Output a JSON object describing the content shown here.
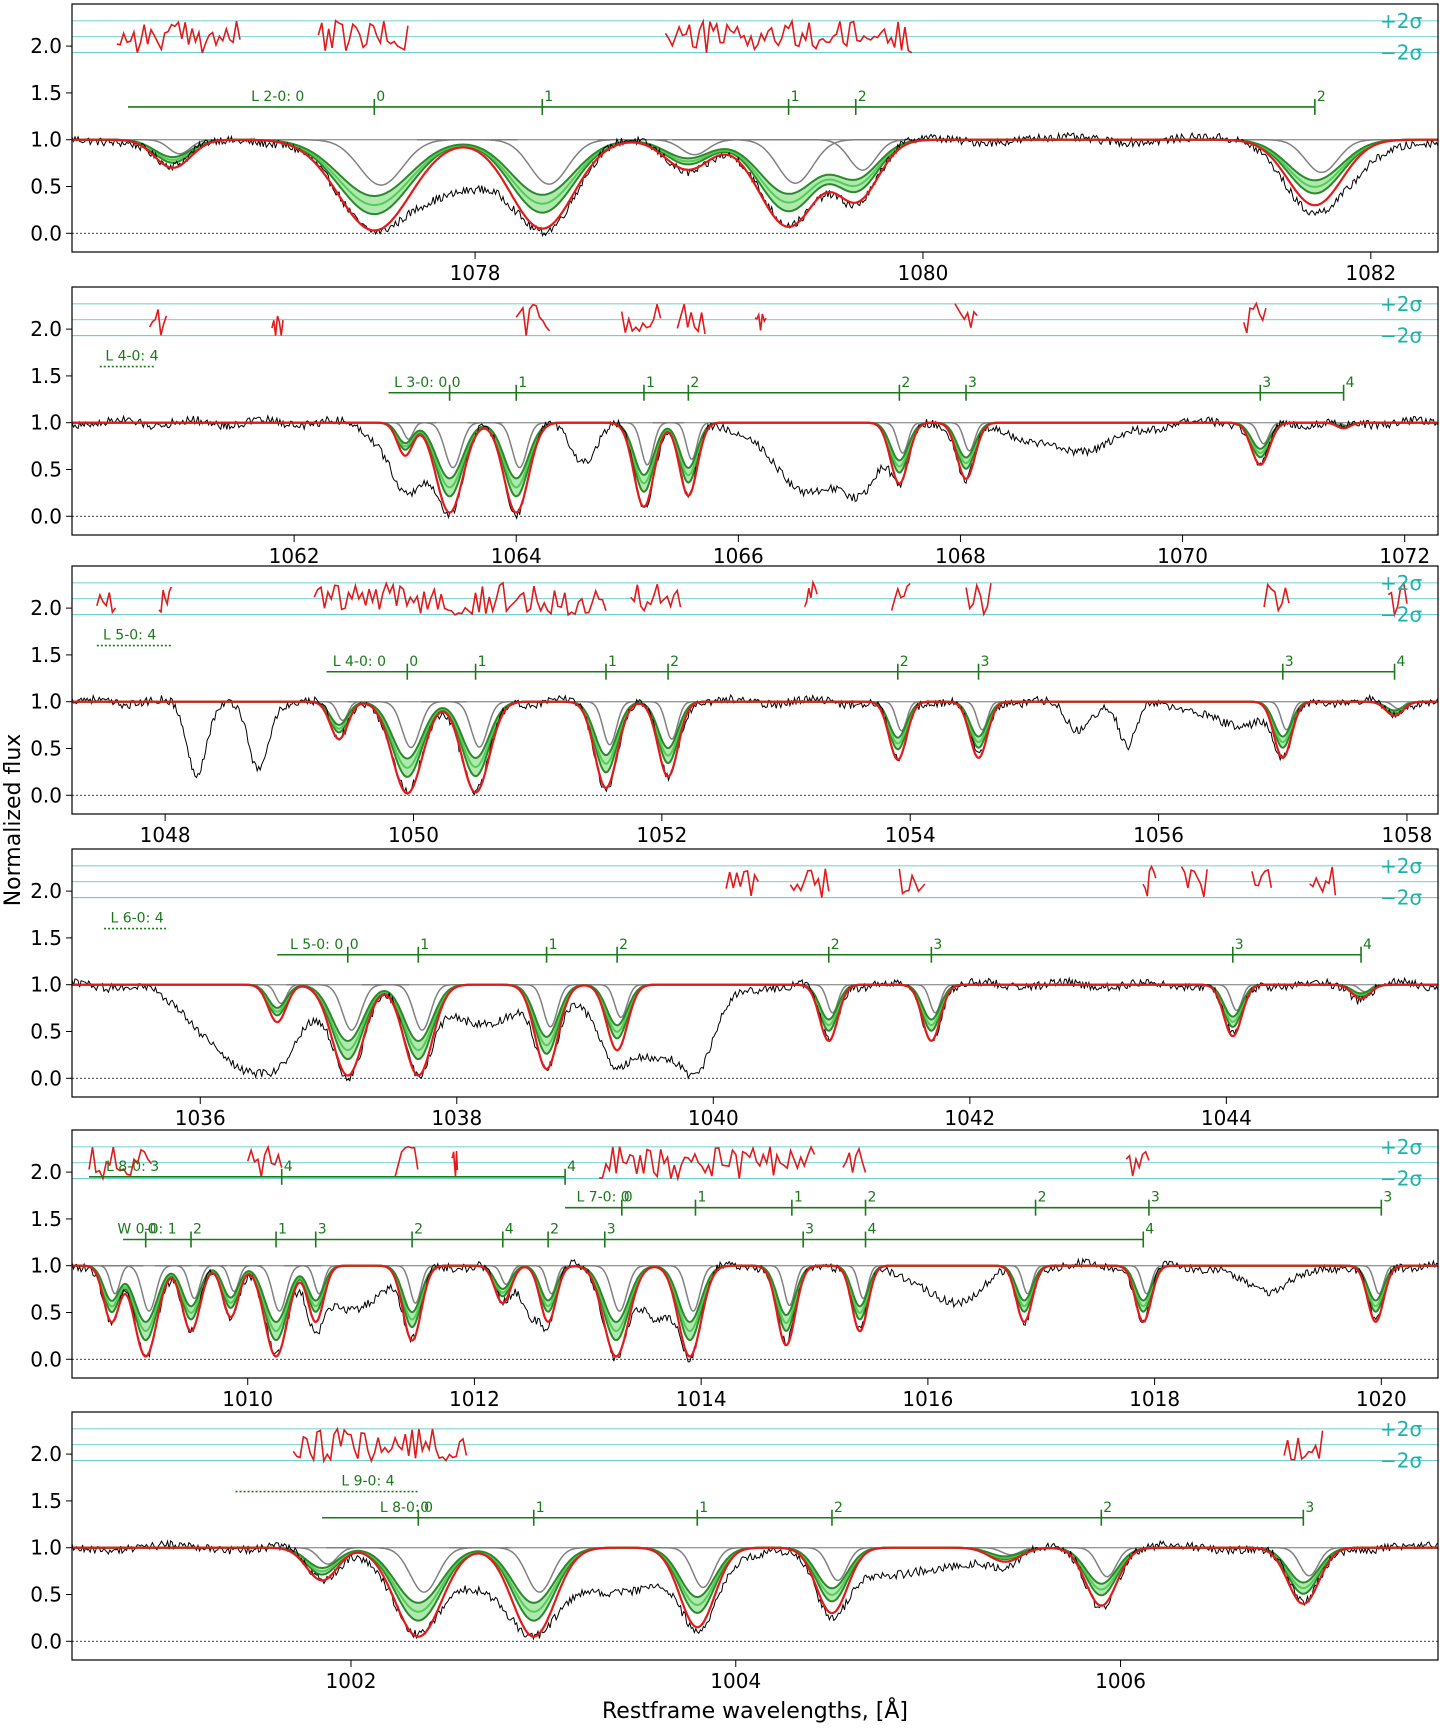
{
  "figure": {
    "xlabel": "Restframe wavelengths, [Å]",
    "ylabel": "Normalized flux",
    "sigma_labels": [
      "+2σ",
      "−2σ"
    ]
  },
  "chart_data": [
    {
      "type": "line",
      "panel": 1,
      "xlim": [
        1076.2,
        1082.3
      ],
      "ylim": [
        -0.2,
        2.45
      ],
      "xticks": [
        1078,
        1080,
        1082
      ],
      "yticks": [
        0.0,
        0.5,
        1.0,
        1.5,
        2.0
      ],
      "lines": [
        {
          "center": 1077.55,
          "depth": 0.97,
          "width": 0.16
        },
        {
          "center": 1078.3,
          "depth": 0.95,
          "width": 0.14
        },
        {
          "center": 1079.4,
          "depth": 0.93,
          "width": 0.13
        },
        {
          "center": 1079.7,
          "depth": 0.65,
          "width": 0.1
        },
        {
          "center": 1081.75,
          "depth": 0.7,
          "width": 0.12
        },
        {
          "center": 1076.65,
          "depth": 0.3,
          "width": 0.08
        },
        {
          "center": 1078.95,
          "depth": 0.32,
          "width": 0.1
        }
      ],
      "extra_data": [
        {
          "center": 1077.9,
          "depth": 0.55,
          "width": 0.25
        },
        {
          "center": 1081.85,
          "depth": 0.35,
          "width": 0.15
        }
      ],
      "resid": [
        [
          1076.4,
          1076.95
        ],
        [
          1077.3,
          1077.7
        ],
        [
          1078.85,
          1079.95
        ]
      ],
      "label_rows": [
        {
          "label": "L 2-0: 0",
          "start": 1076.45,
          "end": 1081.75,
          "label_at": 1077.0,
          "ticks": [
            {
              "x": 1077.55,
              "label": "0"
            },
            {
              "x": 1078.3,
              "label": "1"
            },
            {
              "x": 1079.4,
              "label": "1"
            },
            {
              "x": 1079.7,
              "label": "2"
            },
            {
              "x": 1081.75,
              "label": "2"
            }
          ]
        }
      ]
    },
    {
      "type": "line",
      "panel": 2,
      "xlim": [
        1060.0,
        1072.3
      ],
      "ylim": [
        -0.2,
        2.45
      ],
      "xticks": [
        1062,
        1064,
        1066,
        1068,
        1070,
        1072
      ],
      "yticks": [
        0.0,
        0.5,
        1.0,
        1.5,
        2.0
      ],
      "lines": [
        {
          "center": 1063.4,
          "depth": 0.96,
          "width": 0.12
        },
        {
          "center": 1064.0,
          "depth": 0.96,
          "width": 0.11
        },
        {
          "center": 1065.15,
          "depth": 0.9,
          "width": 0.09
        },
        {
          "center": 1065.55,
          "depth": 0.78,
          "width": 0.08
        },
        {
          "center": 1067.45,
          "depth": 0.65,
          "width": 0.08
        },
        {
          "center": 1068.05,
          "depth": 0.6,
          "width": 0.08
        },
        {
          "center": 1070.7,
          "depth": 0.45,
          "width": 0.08
        },
        {
          "center": 1063.0,
          "depth": 0.35,
          "width": 0.07
        },
        {
          "center": 1071.45,
          "depth": 0.06,
          "width": 0.06
        }
      ],
      "extra_data": [
        {
          "center": 1063.05,
          "depth": 0.7,
          "width": 0.2
        },
        {
          "center": 1066.6,
          "depth": 0.7,
          "width": 0.3
        },
        {
          "center": 1067.05,
          "depth": 0.75,
          "width": 0.2
        },
        {
          "center": 1064.6,
          "depth": 0.4,
          "width": 0.12
        },
        {
          "center": 1069.0,
          "depth": 0.3,
          "width": 0.4
        }
      ],
      "resid": [
        [
          1060.7,
          1060.85
        ],
        [
          1061.8,
          1061.9
        ],
        [
          1064.0,
          1064.3
        ],
        [
          1064.95,
          1065.3
        ],
        [
          1065.45,
          1065.7
        ],
        [
          1066.15,
          1066.25
        ],
        [
          1067.95,
          1068.15
        ],
        [
          1070.55,
          1070.75
        ]
      ],
      "label_rows": [
        {
          "label": "L 4-0: 4",
          "start": 1060.25,
          "end": 1060.75,
          "label_at": 1060.3,
          "dashed": true,
          "ticks": []
        },
        {
          "label": "L 3-0: 0",
          "start": 1062.85,
          "end": 1071.45,
          "label_at": 1062.9,
          "ticks": [
            {
              "x": 1063.4,
              "label": "0"
            },
            {
              "x": 1064.0,
              "label": "1"
            },
            {
              "x": 1065.15,
              "label": "1"
            },
            {
              "x": 1065.55,
              "label": "2"
            },
            {
              "x": 1067.45,
              "label": "2"
            },
            {
              "x": 1068.05,
              "label": "3"
            },
            {
              "x": 1070.7,
              "label": "3"
            },
            {
              "x": 1071.45,
              "label": "4"
            }
          ]
        }
      ]
    },
    {
      "type": "line",
      "panel": 3,
      "xlim": [
        1047.25,
        1058.25
      ],
      "ylim": [
        -0.2,
        2.45
      ],
      "xticks": [
        1048,
        1050,
        1052,
        1054,
        1056,
        1058
      ],
      "yticks": [
        0.0,
        0.5,
        1.0,
        1.5,
        2.0
      ],
      "lines": [
        {
          "center": 1049.95,
          "depth": 0.98,
          "width": 0.12
        },
        {
          "center": 1050.5,
          "depth": 0.97,
          "width": 0.11
        },
        {
          "center": 1051.55,
          "depth": 0.92,
          "width": 0.09
        },
        {
          "center": 1052.05,
          "depth": 0.8,
          "width": 0.08
        },
        {
          "center": 1053.9,
          "depth": 0.62,
          "width": 0.07
        },
        {
          "center": 1054.55,
          "depth": 0.6,
          "width": 0.07
        },
        {
          "center": 1057.0,
          "depth": 0.6,
          "width": 0.07
        },
        {
          "center": 1049.4,
          "depth": 0.4,
          "width": 0.07
        },
        {
          "center": 1057.9,
          "depth": 0.15,
          "width": 0.07
        }
      ],
      "extra_data": [
        {
          "center": 1048.25,
          "depth": 0.75,
          "width": 0.08
        },
        {
          "center": 1048.75,
          "depth": 0.75,
          "width": 0.08
        },
        {
          "center": 1055.35,
          "depth": 0.3,
          "width": 0.1
        },
        {
          "center": 1055.75,
          "depth": 0.5,
          "width": 0.07
        },
        {
          "center": 1056.6,
          "depth": 0.25,
          "width": 0.25
        }
      ],
      "resid": [
        [
          1047.45,
          1047.6
        ],
        [
          1047.95,
          1048.05
        ],
        [
          1049.2,
          1051.55
        ],
        [
          1051.75,
          1052.15
        ],
        [
          1053.15,
          1053.25
        ],
        [
          1053.85,
          1054.0
        ],
        [
          1054.45,
          1054.65
        ],
        [
          1056.85,
          1057.05
        ],
        [
          1057.85,
          1058.0
        ]
      ],
      "label_rows": [
        {
          "label": "L 5-0: 4",
          "start": 1047.45,
          "end": 1048.05,
          "label_at": 1047.5,
          "dashed": true,
          "ticks": []
        },
        {
          "label": "L 4-0: 0",
          "start": 1049.3,
          "end": 1057.9,
          "label_at": 1049.35,
          "ticks": [
            {
              "x": 1049.95,
              "label": "0"
            },
            {
              "x": 1050.5,
              "label": "1"
            },
            {
              "x": 1051.55,
              "label": "1"
            },
            {
              "x": 1052.05,
              "label": "2"
            },
            {
              "x": 1053.9,
              "label": "2"
            },
            {
              "x": 1054.55,
              "label": "3"
            },
            {
              "x": 1057.0,
              "label": "3"
            },
            {
              "x": 1057.9,
              "label": "4"
            }
          ]
        }
      ]
    },
    {
      "type": "line",
      "panel": 4,
      "xlim": [
        1035.0,
        1045.65
      ],
      "ylim": [
        -0.2,
        2.45
      ],
      "xticks": [
        1036,
        1038,
        1040,
        1042,
        1044
      ],
      "yticks": [
        0.0,
        0.5,
        1.0,
        1.5,
        2.0
      ],
      "lines": [
        {
          "center": 1037.15,
          "depth": 0.97,
          "width": 0.12
        },
        {
          "center": 1037.7,
          "depth": 0.97,
          "width": 0.11
        },
        {
          "center": 1038.7,
          "depth": 0.9,
          "width": 0.09
        },
        {
          "center": 1039.25,
          "depth": 0.7,
          "width": 0.08
        },
        {
          "center": 1040.9,
          "depth": 0.6,
          "width": 0.07
        },
        {
          "center": 1041.7,
          "depth": 0.6,
          "width": 0.07
        },
        {
          "center": 1044.05,
          "depth": 0.55,
          "width": 0.07
        },
        {
          "center": 1036.6,
          "depth": 0.4,
          "width": 0.07
        },
        {
          "center": 1045.05,
          "depth": 0.15,
          "width": 0.07
        }
      ],
      "extra_data": [
        {
          "center": 1036.4,
          "depth": 0.95,
          "width": 0.35
        },
        {
          "center": 1039.5,
          "depth": 0.8,
          "width": 0.35
        },
        {
          "center": 1039.85,
          "depth": 0.9,
          "width": 0.12
        },
        {
          "center": 1038.2,
          "depth": 0.45,
          "width": 0.25
        }
      ],
      "resid": [
        [
          1040.1,
          1040.35
        ],
        [
          1040.6,
          1040.9
        ],
        [
          1041.45,
          1041.65
        ],
        [
          1043.35,
          1043.45
        ],
        [
          1043.65,
          1043.85
        ],
        [
          1044.2,
          1044.35
        ],
        [
          1044.65,
          1044.85
        ]
      ],
      "label_rows": [
        {
          "label": "L 6-0: 4",
          "start": 1035.25,
          "end": 1035.75,
          "label_at": 1035.3,
          "dashed": true,
          "ticks": []
        },
        {
          "label": "L 5-0: 0",
          "start": 1036.6,
          "end": 1045.05,
          "label_at": 1036.7,
          "ticks": [
            {
              "x": 1037.15,
              "label": "0"
            },
            {
              "x": 1037.7,
              "label": "1"
            },
            {
              "x": 1038.7,
              "label": "1"
            },
            {
              "x": 1039.25,
              "label": "2"
            },
            {
              "x": 1040.9,
              "label": "2"
            },
            {
              "x": 1041.7,
              "label": "3"
            },
            {
              "x": 1044.05,
              "label": "3"
            },
            {
              "x": 1045.05,
              "label": "4"
            }
          ]
        }
      ]
    },
    {
      "type": "line",
      "panel": 5,
      "xlim": [
        1008.45,
        1020.5
      ],
      "ylim": [
        -0.2,
        2.45
      ],
      "xticks": [
        1010,
        1012,
        1014,
        1016,
        1018,
        1020
      ],
      "yticks": [
        0.0,
        0.5,
        1.0,
        1.5,
        2.0
      ],
      "lines": [
        {
          "center": 1009.1,
          "depth": 0.97,
          "width": 0.1
        },
        {
          "center": 1009.5,
          "depth": 0.7,
          "width": 0.08
        },
        {
          "center": 1010.25,
          "depth": 0.97,
          "width": 0.1
        },
        {
          "center": 1010.6,
          "depth": 0.6,
          "width": 0.07
        },
        {
          "center": 1011.45,
          "depth": 0.8,
          "width": 0.08
        },
        {
          "center": 1012.65,
          "depth": 0.6,
          "width": 0.07
        },
        {
          "center": 1013.25,
          "depth": 0.97,
          "width": 0.11
        },
        {
          "center": 1013.9,
          "depth": 0.97,
          "width": 0.1
        },
        {
          "center": 1014.75,
          "depth": 0.85,
          "width": 0.08
        },
        {
          "center": 1015.4,
          "depth": 0.7,
          "width": 0.07
        },
        {
          "center": 1016.85,
          "depth": 0.6,
          "width": 0.07
        },
        {
          "center": 1017.9,
          "depth": 0.6,
          "width": 0.07
        },
        {
          "center": 1019.95,
          "depth": 0.6,
          "width": 0.07
        },
        {
          "center": 1008.8,
          "depth": 0.6,
          "width": 0.07
        },
        {
          "center": 1009.85,
          "depth": 0.55,
          "width": 0.07
        },
        {
          "center": 1012.25,
          "depth": 0.4,
          "width": 0.07
        }
      ],
      "extra_data": [
        {
          "center": 1010.9,
          "depth": 0.5,
          "width": 0.25
        },
        {
          "center": 1012.5,
          "depth": 0.5,
          "width": 0.1
        },
        {
          "center": 1013.6,
          "depth": 0.6,
          "width": 0.15
        },
        {
          "center": 1016.2,
          "depth": 0.4,
          "width": 0.25
        },
        {
          "center": 1019.0,
          "depth": 0.25,
          "width": 0.25
        }
      ],
      "resid": [
        [
          1008.6,
          1009.15
        ],
        [
          1010.0,
          1010.3
        ],
        [
          1011.3,
          1011.5
        ],
        [
          1011.8,
          1011.85
        ],
        [
          1013.1,
          1015.0
        ],
        [
          1015.25,
          1015.45
        ],
        [
          1017.75,
          1017.95
        ]
      ],
      "label_rows": [
        {
          "label": "L 8-0: 3",
          "start": 1008.6,
          "end": 1012.8,
          "label_at": 1008.75,
          "ticks": [
            {
              "x": 1010.3,
              "label": "4"
            },
            {
              "x": 1012.8,
              "label": "4"
            }
          ]
        },
        {
          "label": "L 7-0: 0",
          "start": 1012.8,
          "end": 1020.0,
          "label_at": 1012.9,
          "ticks": [
            {
              "x": 1013.3,
              "label": "0"
            },
            {
              "x": 1013.95,
              "label": "1"
            },
            {
              "x": 1014.8,
              "label": "1"
            },
            {
              "x": 1015.45,
              "label": "2"
            },
            {
              "x": 1016.95,
              "label": "2"
            },
            {
              "x": 1017.95,
              "label": "3"
            },
            {
              "x": 1020.0,
              "label": "3"
            }
          ]
        },
        {
          "label": "W 0-0: 1",
          "start": 1008.9,
          "end": 1017.9,
          "label_at": 1008.85,
          "ticks": [
            {
              "x": 1009.1,
              "label": "0"
            },
            {
              "x": 1009.5,
              "label": "2"
            },
            {
              "x": 1010.25,
              "label": "1"
            },
            {
              "x": 1010.6,
              "label": "3"
            },
            {
              "x": 1011.45,
              "label": "2"
            },
            {
              "x": 1012.25,
              "label": "4"
            },
            {
              "x": 1012.65,
              "label": "2"
            },
            {
              "x": 1013.15,
              "label": "3"
            },
            {
              "x": 1014.9,
              "label": "3"
            },
            {
              "x": 1015.45,
              "label": "4"
            },
            {
              "x": 1017.9,
              "label": "4"
            }
          ]
        }
      ]
    },
    {
      "type": "line",
      "panel": 6,
      "xlim": [
        1000.55,
        1007.65
      ],
      "ylim": [
        -0.2,
        2.45
      ],
      "xticks": [
        1002,
        1004,
        1006
      ],
      "yticks": [
        0.0,
        0.5,
        1.0,
        1.5,
        2.0
      ],
      "lines": [
        {
          "center": 1002.35,
          "depth": 0.95,
          "width": 0.12
        },
        {
          "center": 1002.95,
          "depth": 0.95,
          "width": 0.11
        },
        {
          "center": 1003.8,
          "depth": 0.85,
          "width": 0.09
        },
        {
          "center": 1004.5,
          "depth": 0.7,
          "width": 0.08
        },
        {
          "center": 1005.9,
          "depth": 0.62,
          "width": 0.08
        },
        {
          "center": 1006.95,
          "depth": 0.6,
          "width": 0.08
        },
        {
          "center": 1001.85,
          "depth": 0.35,
          "width": 0.08
        },
        {
          "center": 1005.4,
          "depth": 0.15,
          "width": 0.08
        }
      ],
      "extra_data": [
        {
          "center": 1002.85,
          "depth": 0.45,
          "width": 0.35
        },
        {
          "center": 1003.5,
          "depth": 0.4,
          "width": 0.3
        },
        {
          "center": 1004.85,
          "depth": 0.3,
          "width": 0.3
        }
      ],
      "resid": [
        [
          1001.7,
          1002.6
        ],
        [
          1006.85,
          1007.05
        ]
      ],
      "label_rows": [
        {
          "label": "L 9-0: 4",
          "start": 1001.4,
          "end": 1002.35,
          "label_at": 1001.95,
          "dashed": true,
          "ticks": []
        },
        {
          "label": "L 8-0: 0",
          "start": 1001.85,
          "end": 1006.95,
          "label_at": 1002.15,
          "ticks": [
            {
              "x": 1002.35,
              "label": "0"
            },
            {
              "x": 1002.95,
              "label": "1"
            },
            {
              "x": 1003.8,
              "label": "1"
            },
            {
              "x": 1004.5,
              "label": "2"
            },
            {
              "x": 1005.9,
              "label": "2"
            },
            {
              "x": 1006.95,
              "label": "3"
            }
          ]
        }
      ]
    }
  ],
  "colors": {
    "data": "#000000",
    "model_total": "#e31a1c",
    "component_dark": "#2a8a2a",
    "component_light": "#55cc55",
    "component_fill": "#8fe08f",
    "component_grey": "#808080",
    "residual": "#e31a1c",
    "sigma_lines": "#40c0c0",
    "label_green": "#1a7a1a"
  }
}
